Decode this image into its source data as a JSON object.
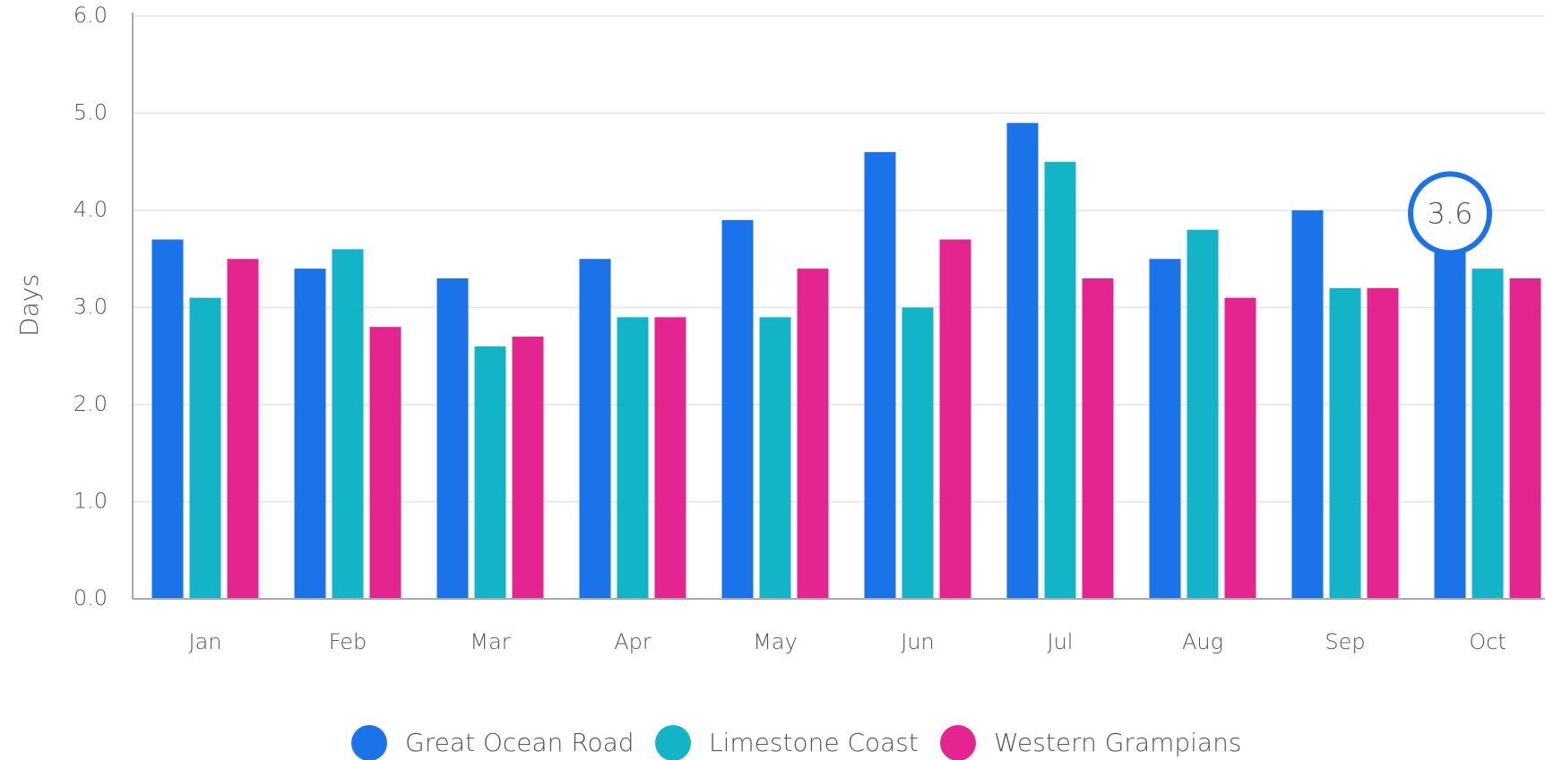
{
  "chart_data": {
    "type": "bar",
    "y_label": "Days",
    "categories": [
      "Jan",
      "Feb",
      "Mar",
      "Apr",
      "May",
      "Jun",
      "Jul",
      "Aug",
      "Sep",
      "Oct"
    ],
    "series": [
      {
        "name": "Great Ocean Road",
        "color": "#1a73e8",
        "values": [
          3.7,
          3.4,
          3.3,
          3.5,
          3.9,
          4.6,
          4.9,
          3.5,
          4.0,
          3.6
        ]
      },
      {
        "name": "Limestone Coast",
        "color": "#14b4c8",
        "values": [
          3.1,
          3.6,
          2.6,
          2.9,
          2.9,
          3.0,
          4.5,
          3.8,
          3.2,
          3.4
        ]
      },
      {
        "name": "Western Grampians",
        "color": "#e5258f",
        "values": [
          3.5,
          2.8,
          2.7,
          2.9,
          3.4,
          3.7,
          3.3,
          3.1,
          3.2,
          3.3
        ]
      }
    ],
    "tooltip": {
      "series": 0,
      "index": 9
    },
    "ylim": [
      0,
      6
    ],
    "yticks": [
      {
        "value": 0,
        "label": "0.0"
      },
      {
        "value": 1,
        "label": "1.0"
      },
      {
        "value": 2,
        "label": "2.0"
      },
      {
        "value": 3,
        "label": "3.0"
      },
      {
        "value": 4,
        "label": "4.0"
      },
      {
        "value": 5,
        "label": "5.0"
      },
      {
        "value": 6,
        "label": "6.0"
      }
    ],
    "grid": true
  }
}
